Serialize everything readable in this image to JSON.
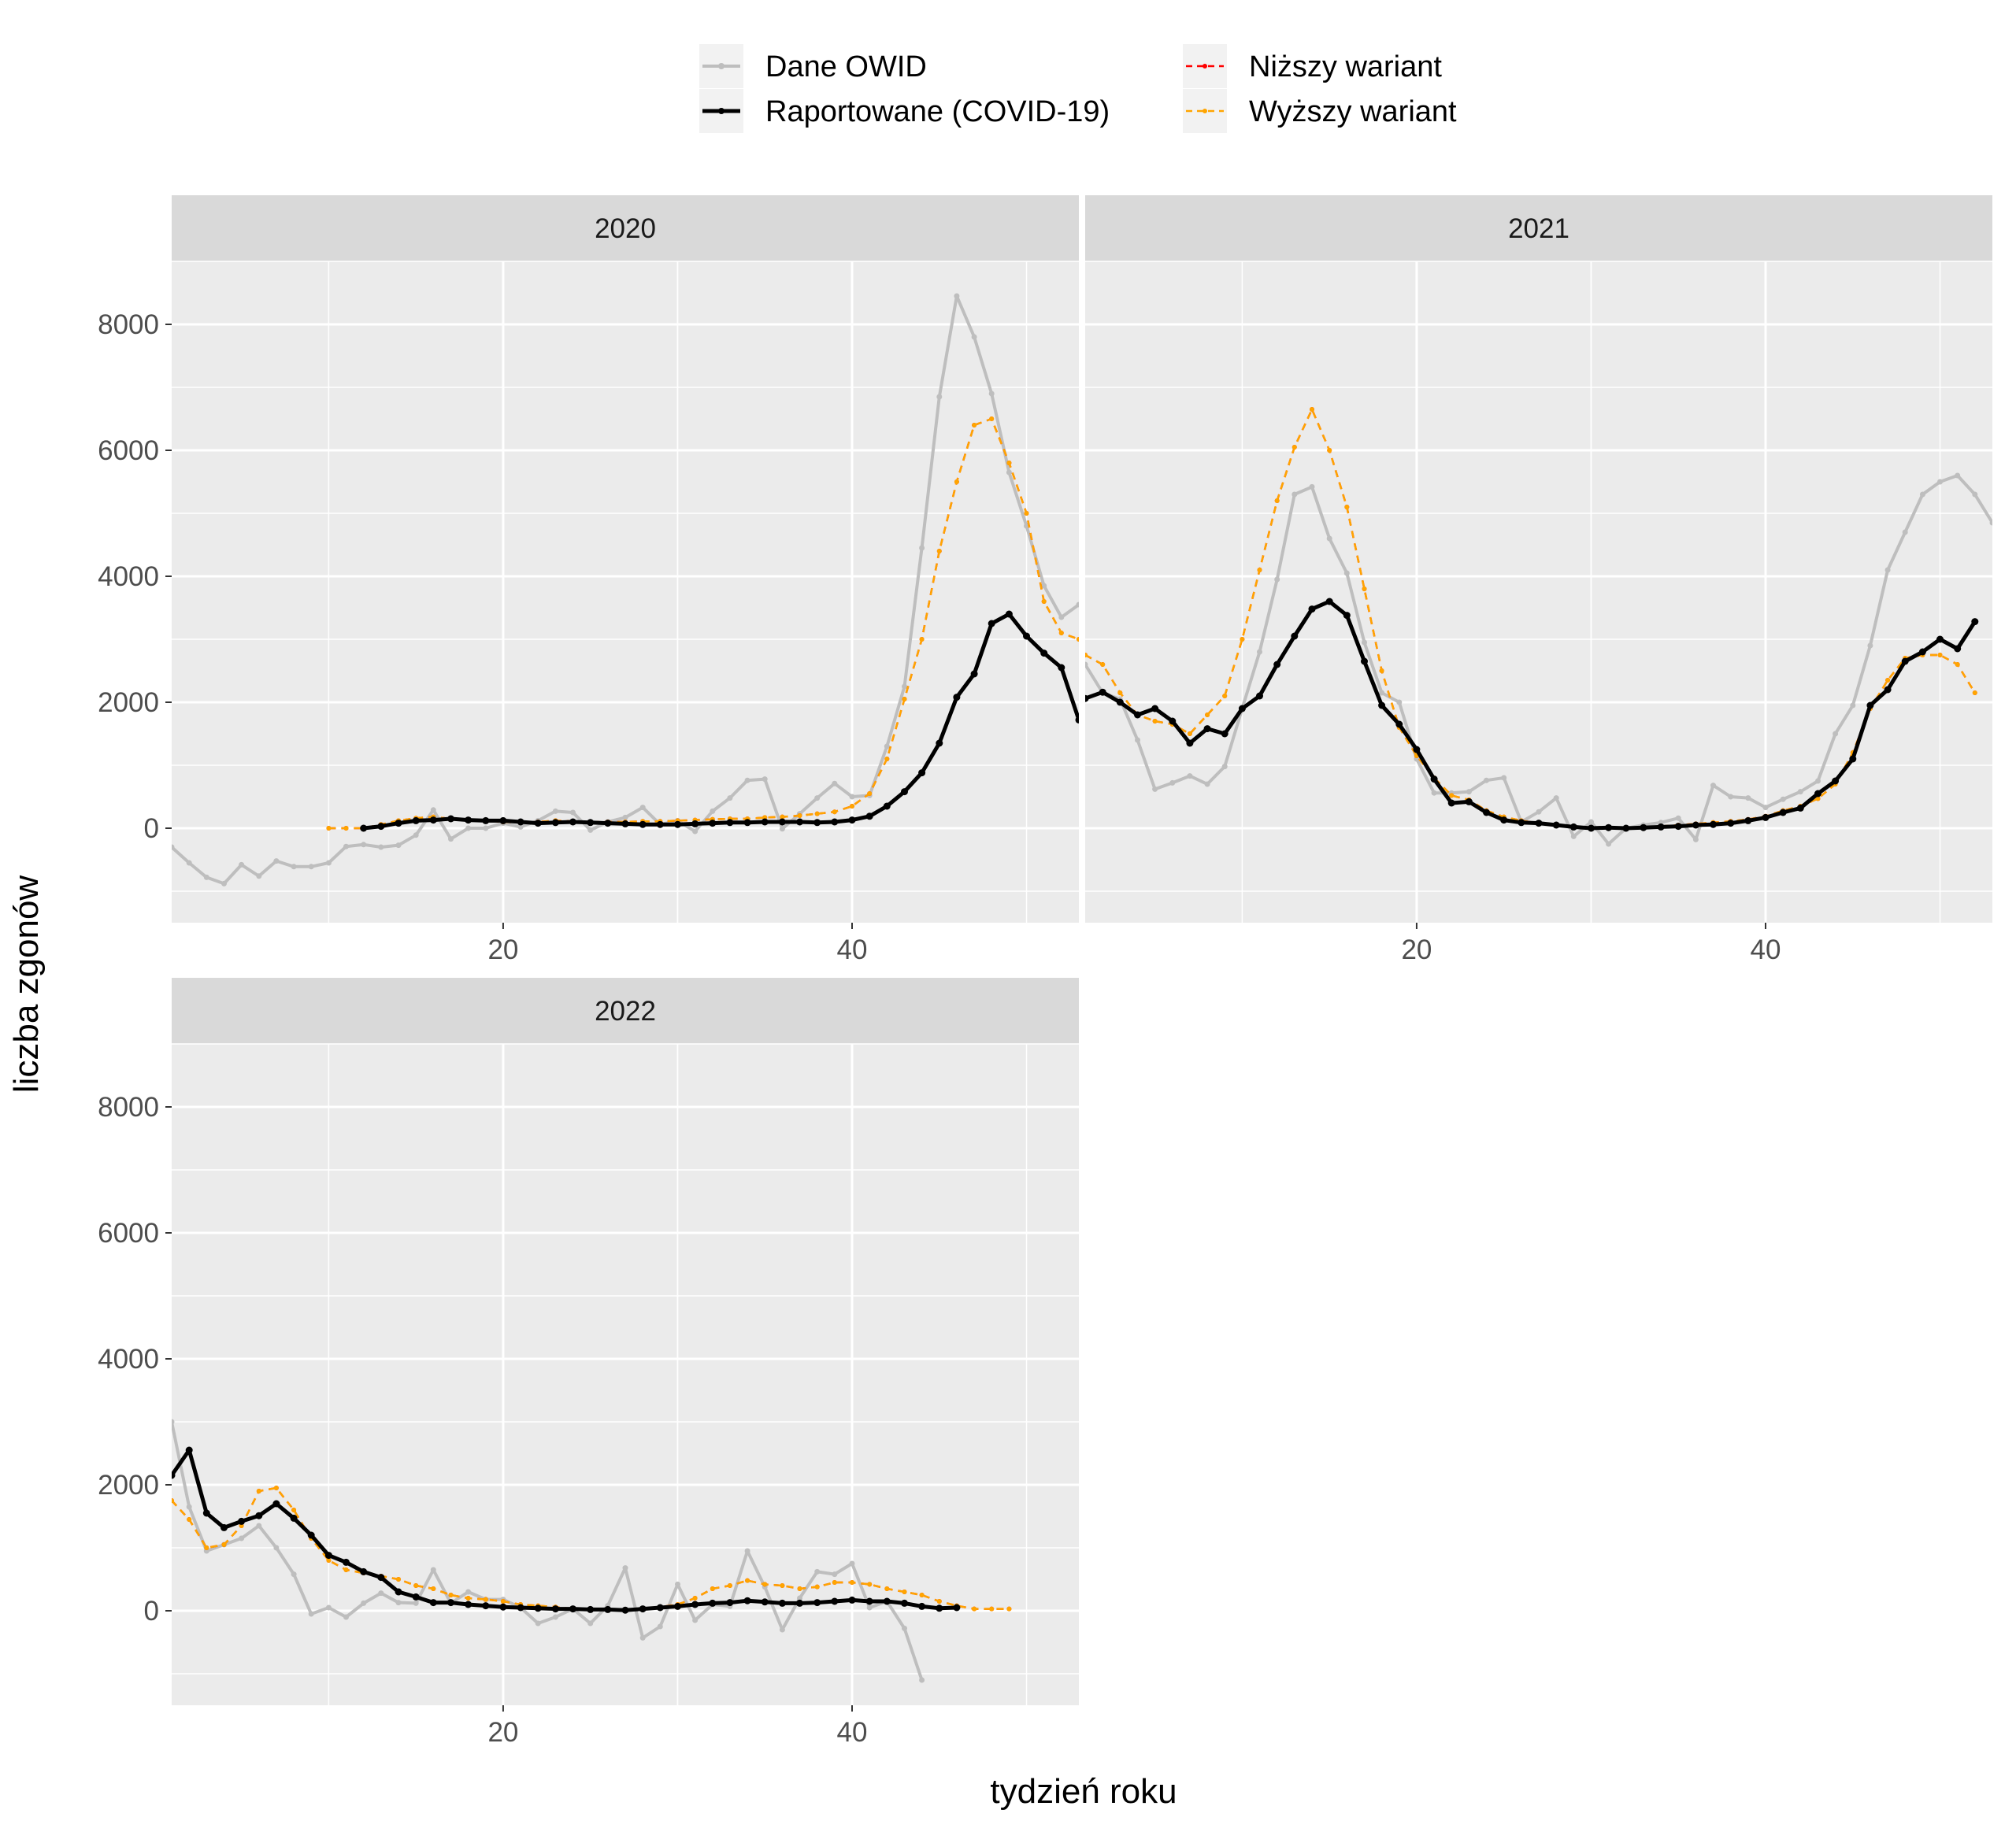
{
  "chart_data": {
    "type": "line",
    "xlabel": "tydzień roku",
    "ylabel": "liczba zgonów",
    "xlim": [
      1,
      53
    ],
    "ylim": [
      -1500,
      9000
    ],
    "x_ticks": [
      20,
      40
    ],
    "y_ticks": [
      0,
      2000,
      4000,
      6000,
      8000
    ],
    "grid": true,
    "legend_position": "top",
    "legend": [
      {
        "name": "Dane OWID",
        "color": "#bebebe",
        "style": "solid-points"
      },
      {
        "name": "Raportowane (COVID-19)",
        "color": "#000000",
        "style": "solid-points"
      },
      {
        "name": "Niższy wariant",
        "color": "#ff0000",
        "style": "dashed-points"
      },
      {
        "name": "Wyższy wariant",
        "color": "#ffa500",
        "style": "dashed-points"
      }
    ],
    "panels": [
      {
        "title": "2020",
        "series": [
          {
            "name": "Dane OWID",
            "x_start": 1,
            "values": [
              -300,
              -550,
              -780,
              -880,
              -580,
              -760,
              -520,
              -610,
              -610,
              -550,
              -290,
              -260,
              -300,
              -270,
              -110,
              290,
              -170,
              0,
              0,
              80,
              20,
              120,
              270,
              250,
              -30,
              100,
              170,
              330,
              60,
              120,
              -50,
              270,
              480,
              760,
              780,
              -10,
              230,
              480,
              710,
              500,
              520,
              1300,
              2250,
              4450,
              6850,
              8450,
              7800,
              6900,
              5650,
              4800,
              3850,
              3350,
              3550,
              3200
            ]
          },
          {
            "name": "Raportowane (COVID-19)",
            "x_start": 12,
            "values": [
              0,
              30,
              80,
              120,
              130,
              150,
              130,
              120,
              120,
              100,
              80,
              90,
              100,
              90,
              80,
              70,
              60,
              60,
              60,
              70,
              80,
              90,
              90,
              100,
              100,
              100,
              90,
              100,
              130,
              190,
              350,
              580,
              880,
              1350,
              2080,
              2450,
              3250,
              3400,
              3050,
              2780,
              2550,
              1720,
              1980
            ]
          },
          {
            "name": "Niższy wariant",
            "x_start": 10,
            "values": [
              0,
              0,
              0,
              60,
              120,
              160,
              180,
              150,
              140,
              120,
              100,
              90,
              100,
              120,
              110,
              100,
              100,
              100,
              110,
              110,
              120,
              130,
              140,
              150,
              150,
              170,
              180,
              200,
              230,
              260,
              350,
              550,
              1100,
              2050,
              3000,
              4400,
              5500,
              6400,
              6500,
              5800,
              5000,
              3600,
              3100,
              3000
            ]
          },
          {
            "name": "Wyższy wariant",
            "x_start": 10,
            "values": [
              0,
              0,
              0,
              60,
              120,
              160,
              180,
              150,
              140,
              120,
              100,
              90,
              100,
              120,
              110,
              100,
              100,
              100,
              110,
              110,
              120,
              130,
              140,
              150,
              150,
              170,
              180,
              200,
              230,
              260,
              350,
              550,
              1100,
              2050,
              3000,
              4400,
              5500,
              6400,
              6500,
              5800,
              5000,
              3600,
              3100,
              3000
            ]
          }
        ]
      },
      {
        "title": "2021",
        "series": [
          {
            "name": "Dane OWID",
            "x_start": 1,
            "values": [
              2600,
              2150,
              2050,
              1400,
              620,
              720,
              830,
              700,
              980,
              1900,
              2800,
              3950,
              5300,
              5420,
              4600,
              4050,
              2950,
              2150,
              2000,
              1100,
              560,
              560,
              580,
              760,
              800,
              100,
              260,
              480,
              -130,
              100,
              -250,
              0,
              50,
              90,
              160,
              -180,
              680,
              500,
              480,
              330,
              460,
              580,
              750,
              1500,
              1950,
              2900,
              4100,
              4700,
              5300,
              5500,
              5600,
              5300,
              4850
            ]
          },
          {
            "name": "Raportowane (COVID-19)",
            "x_start": 1,
            "values": [
              2060,
              2160,
              2000,
              1800,
              1900,
              1700,
              1350,
              1580,
              1500,
              1900,
              2100,
              2600,
              3050,
              3480,
              3600,
              3380,
              2650,
              1950,
              1650,
              1250,
              780,
              400,
              420,
              250,
              130,
              90,
              80,
              50,
              20,
              0,
              10,
              0,
              10,
              20,
              30,
              50,
              60,
              80,
              120,
              170,
              250,
              320,
              550,
              750,
              1100,
              1950,
              2200,
              2650,
              2800,
              3000,
              2850,
              3280
            ]
          },
          {
            "name": "Niższy wariant",
            "x_start": 1,
            "values": [
              2750,
              2600,
              2150,
              1800,
              1700,
              1650,
              1500,
              1800,
              2100,
              3000,
              4100,
              5200,
              6050,
              6650,
              6000,
              5100,
              3800,
              2500,
              1600,
              1150,
              800,
              520,
              450,
              280,
              180,
              120,
              80,
              50,
              20,
              10,
              0,
              0,
              10,
              30,
              50,
              70,
              90,
              110,
              140,
              190,
              280,
              350,
              470,
              700,
              1200,
              1900,
              2350,
              2700,
              2750,
              2750,
              2600,
              2150
            ]
          },
          {
            "name": "Wyższy wariant",
            "x_start": 1,
            "values": [
              2750,
              2600,
              2150,
              1800,
              1700,
              1650,
              1500,
              1800,
              2100,
              3000,
              4100,
              5200,
              6050,
              6650,
              6000,
              5100,
              3800,
              2500,
              1600,
              1150,
              800,
              520,
              450,
              280,
              180,
              120,
              80,
              50,
              20,
              10,
              0,
              0,
              10,
              30,
              50,
              70,
              90,
              110,
              140,
              190,
              280,
              350,
              470,
              700,
              1200,
              1900,
              2350,
              2700,
              2750,
              2750,
              2600,
              2150
            ]
          }
        ]
      },
      {
        "title": "2022",
        "series": [
          {
            "name": "Dane OWID",
            "x_start": 1,
            "values": [
              3000,
              1650,
              950,
              1050,
              1150,
              1350,
              1000,
              580,
              -50,
              50,
              -100,
              120,
              280,
              130,
              120,
              650,
              120,
              300,
              180,
              180,
              50,
              -200,
              -100,
              30,
              -200,
              80,
              680,
              -430,
              -250,
              420,
              -150,
              100,
              70,
              950,
              380,
              -300,
              200,
              620,
              580,
              750,
              50,
              150,
              -280,
              -1100
            ]
          },
          {
            "name": "Raportowane (COVID-19)",
            "x_start": 1,
            "values": [
              2150,
              2550,
              1550,
              1320,
              1420,
              1510,
              1700,
              1470,
              1200,
              880,
              770,
              620,
              530,
              300,
              220,
              130,
              130,
              100,
              80,
              60,
              50,
              40,
              30,
              30,
              20,
              20,
              10,
              30,
              50,
              70,
              100,
              120,
              130,
              160,
              140,
              120,
              120,
              130,
              150,
              170,
              150,
              150,
              120,
              70,
              40,
              50
            ]
          },
          {
            "name": "Niższy wariant",
            "x_start": 1,
            "values": [
              1750,
              1450,
              1000,
              1050,
              1350,
              1900,
              1950,
              1600,
              1150,
              800,
              650,
              600,
              550,
              500,
              400,
              350,
              250,
              200,
              180,
              150,
              100,
              80,
              60,
              30,
              20,
              20,
              10,
              20,
              60,
              100,
              200,
              350,
              400,
              480,
              420,
              400,
              350,
              380,
              450,
              450,
              420,
              350,
              300,
              250,
              150,
              80,
              30,
              30,
              30
            ]
          },
          {
            "name": "Wyższy wariant",
            "x_start": 1,
            "values": [
              1750,
              1450,
              1000,
              1050,
              1350,
              1900,
              1950,
              1600,
              1150,
              800,
              650,
              600,
              550,
              500,
              400,
              350,
              250,
              200,
              180,
              150,
              100,
              80,
              60,
              30,
              20,
              20,
              10,
              20,
              60,
              100,
              200,
              350,
              400,
              480,
              420,
              400,
              350,
              380,
              450,
              450,
              420,
              350,
              300,
              250,
              150,
              80,
              30,
              30,
              30
            ]
          }
        ]
      }
    ]
  }
}
